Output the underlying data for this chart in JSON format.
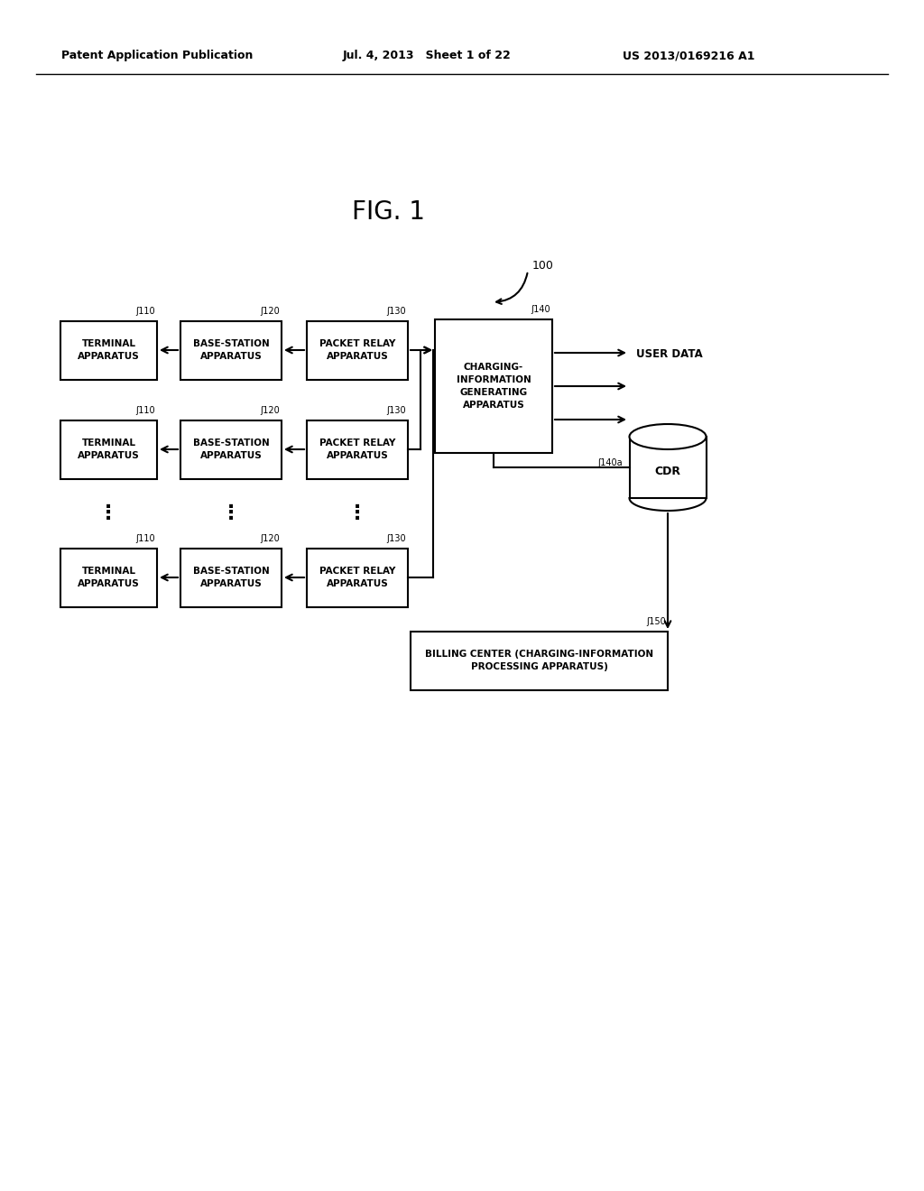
{
  "header_left": "Patent Application Publication",
  "header_mid": "Jul. 4, 2013   Sheet 1 of 22",
  "header_right": "US 2013/0169216 A1",
  "fig_title": "FIG. 1",
  "bg_color": "#ffffff",
  "text_color": "#000000",
  "rows": [
    {
      "terminal_label": "TERMINAL\nAPPARATUS",
      "base_label": "BASE-STATION\nAPPARATUS",
      "relay_label": "PACKET RELAY\nAPPARATUS"
    },
    {
      "terminal_label": "TERMINAL\nAPPARATUS",
      "base_label": "BASE-STATION\nAPPARATUS",
      "relay_label": "PACKET RELAY\nAPPARATUS"
    },
    {
      "terminal_label": "TERMINAL\nAPPARATUS",
      "base_label": "BASE-STATION\nAPPARATUS",
      "relay_label": "PACKET RELAY\nAPPARATUS"
    }
  ],
  "charging_label": "CHARGING-\nINFORMATION\nGENERATING\nAPPARATUS",
  "cdr_label": "CDR",
  "billing_label": "BILLING CENTER (CHARGING-INFORMATION\nPROCESSING APPARATUS)",
  "user_data_label": "USER DATA",
  "label_110": "110",
  "label_120": "120",
  "label_130": "130",
  "label_140": "140",
  "label_140a": "140a",
  "label_150": "150",
  "label_100": "100"
}
